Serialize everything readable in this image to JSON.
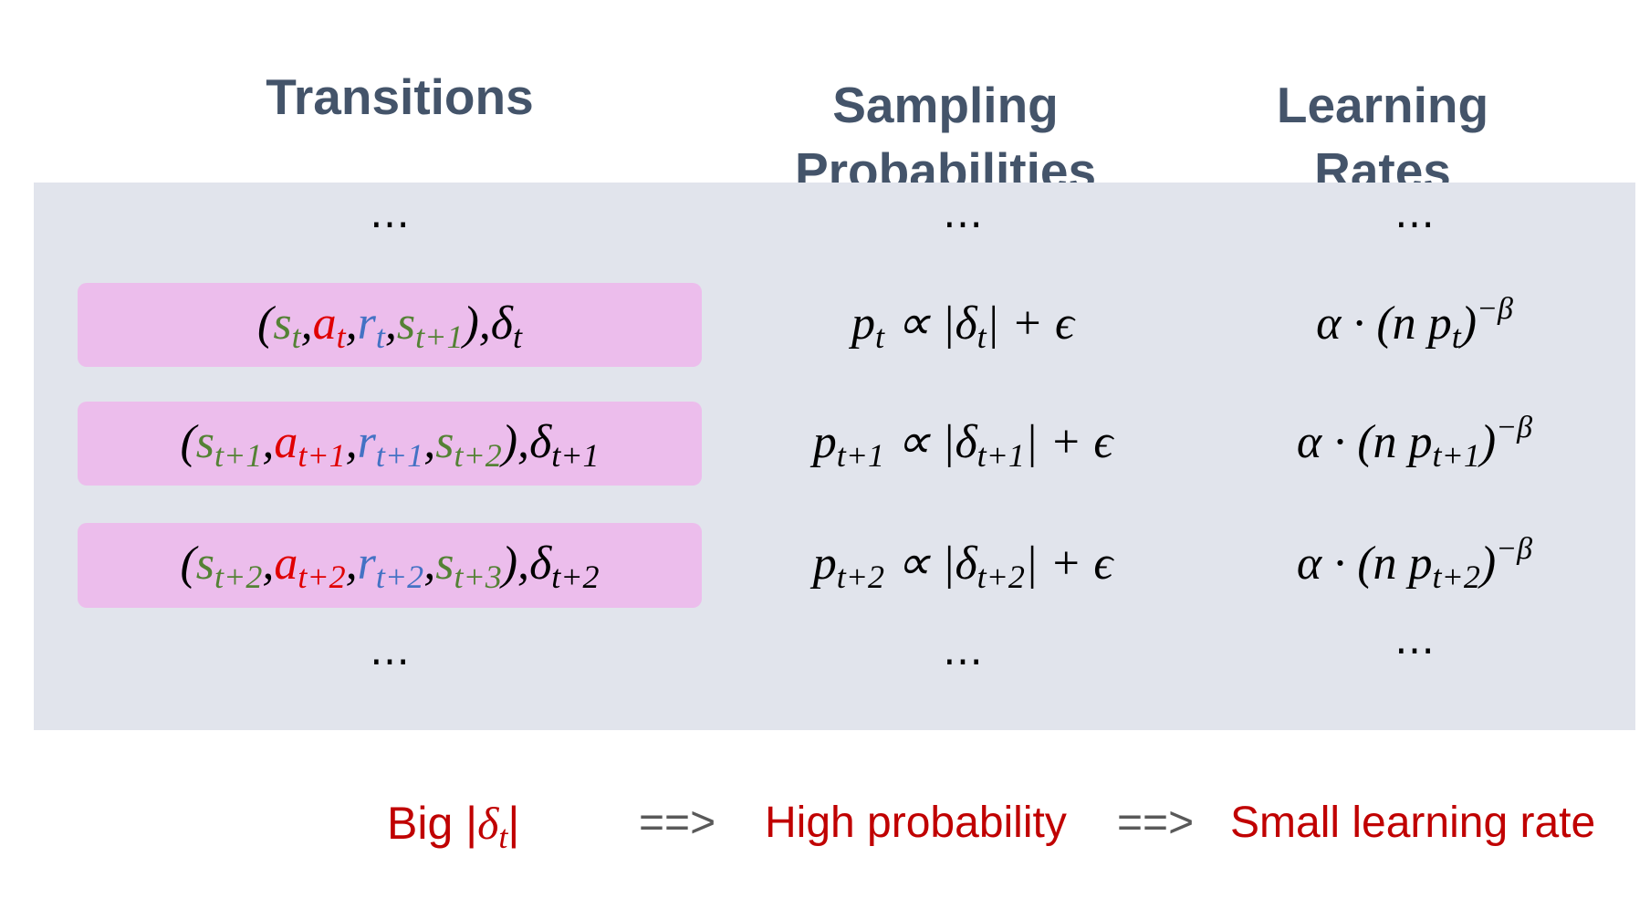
{
  "header": {
    "columns": [
      "Transitions",
      "Sampling Probabilities",
      "Learning Rates"
    ]
  },
  "top_ellipsis": [
    "⋯",
    "⋯",
    "⋯"
  ],
  "rows": [
    {
      "transition": [
        {
          "text": "("
        },
        {
          "text": "s",
          "sub": "t",
          "color": "#548235"
        },
        {
          "text": ","
        },
        {
          "text": "a",
          "sub": "t",
          "color": "#e00000"
        },
        {
          "text": ","
        },
        {
          "text": "r",
          "sub": "t",
          "color": "#4472c4"
        },
        {
          "text": ","
        },
        {
          "text": "s",
          "sub": "t+1",
          "color": "#548235"
        },
        {
          "text": "),"
        },
        {
          "text": "δ",
          "sub": "t"
        }
      ],
      "probability": [
        {
          "text": "p",
          "sub": "t"
        },
        {
          "text": " ∝ |"
        },
        {
          "text": "δ",
          "sub": "t"
        },
        {
          "text": "| + ϵ"
        }
      ],
      "learning_rate": [
        {
          "text": "α · (n "
        },
        {
          "text": "p",
          "sub": "t"
        },
        {
          "text": ")",
          "sup": "−β"
        }
      ]
    },
    {
      "transition": [
        {
          "text": "("
        },
        {
          "text": "s",
          "sub": "t+1",
          "color": "#548235"
        },
        {
          "text": ","
        },
        {
          "text": "a",
          "sub": "t+1",
          "color": "#e00000"
        },
        {
          "text": ","
        },
        {
          "text": "r",
          "sub": "t+1",
          "color": "#4472c4"
        },
        {
          "text": ","
        },
        {
          "text": "s",
          "sub": "t+2",
          "color": "#548235"
        },
        {
          "text": "),"
        },
        {
          "text": "δ",
          "sub": "t+1"
        }
      ],
      "probability": [
        {
          "text": "p",
          "sub": "t+1"
        },
        {
          "text": " ∝ |"
        },
        {
          "text": "δ",
          "sub": "t+1"
        },
        {
          "text": "| + ϵ"
        }
      ],
      "learning_rate": [
        {
          "text": "α · (n "
        },
        {
          "text": "p",
          "sub": "t+1"
        },
        {
          "text": ")",
          "sup": "−β"
        }
      ]
    },
    {
      "transition": [
        {
          "text": "("
        },
        {
          "text": "s",
          "sub": "t+2",
          "color": "#548235"
        },
        {
          "text": ","
        },
        {
          "text": "a",
          "sub": "t+2",
          "color": "#e00000"
        },
        {
          "text": ","
        },
        {
          "text": "r",
          "sub": "t+2",
          "color": "#4472c4"
        },
        {
          "text": ","
        },
        {
          "text": "s",
          "sub": "t+3",
          "color": "#548235"
        },
        {
          "text": "),"
        },
        {
          "text": "δ",
          "sub": "t+2"
        }
      ],
      "probability": [
        {
          "text": "p",
          "sub": "t+2"
        },
        {
          "text": " ∝ |"
        },
        {
          "text": "δ",
          "sub": "t+2"
        },
        {
          "text": "| + ϵ"
        }
      ],
      "learning_rate": [
        {
          "text": "α · (n "
        },
        {
          "text": "p",
          "sub": "t+2"
        },
        {
          "text": ")",
          "sup": "−β"
        }
      ]
    }
  ],
  "bottom_ellipsis": [
    "⋯",
    "⋯",
    "⋯"
  ],
  "footer": {
    "cause": [
      {
        "text": "Big |"
      },
      {
        "text": "δ",
        "sub": "t"
      },
      {
        "text": "|"
      }
    ],
    "arrow_1": "==>",
    "effect_1": "High probability",
    "arrow_2": "==>",
    "effect_2": "Small learning rate"
  }
}
